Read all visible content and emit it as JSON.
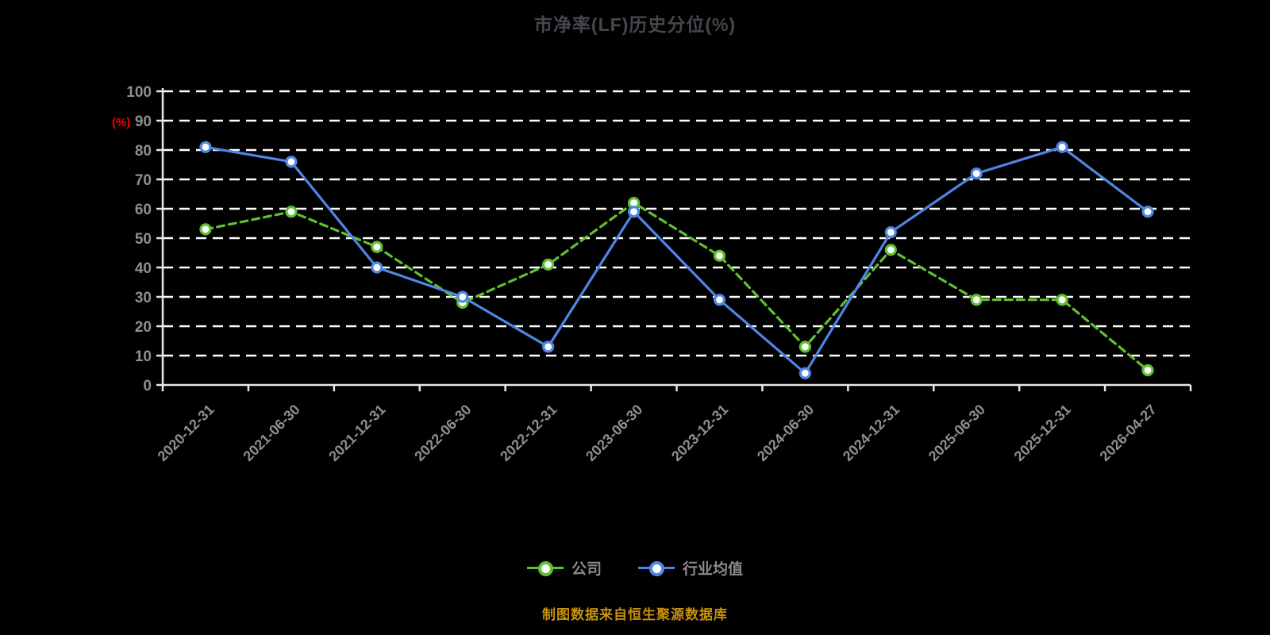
{
  "title": "市净率(LF)历史分位(%)",
  "y_axis_label": "(%)",
  "footer": "制图数据来自恒生聚源数据库",
  "legend": [
    {
      "label": "公司",
      "color": "#5fc131"
    },
    {
      "label": "行业均值",
      "color": "#4f86e3"
    }
  ],
  "colors": {
    "background": "#000000",
    "title": "#46464e",
    "axis": "#e8e8e8",
    "grid": "#ffffff",
    "tick_label": "#8f8f8f",
    "unit_label": "#ff0000",
    "footer": "#c8910d",
    "series_company": "#5fc131",
    "series_industry": "#4f86e3"
  },
  "chart_data": {
    "type": "line",
    "title": "市净率(LF)历史分位(%)",
    "xlabel": "",
    "ylabel": "(%)",
    "ylim": [
      0,
      100
    ],
    "ytick_step": 10,
    "grid": true,
    "legend_position": "bottom",
    "categories": [
      "2020-12-31",
      "2021-06-30",
      "2021-12-31",
      "2022-06-30",
      "2022-12-31",
      "2023-06-30",
      "2023-12-31",
      "2024-06-30",
      "2024-12-31",
      "2025-06-30",
      "2025-12-31",
      "2026-04-27"
    ],
    "series": [
      {
        "name": "公司",
        "color": "#5fc131",
        "dashed": true,
        "values": [
          53,
          59,
          47,
          28,
          41,
          62,
          44,
          13,
          46,
          29,
          29,
          5
        ]
      },
      {
        "name": "行业均值",
        "color": "#4f86e3",
        "dashed": false,
        "values": [
          81,
          76,
          40,
          30,
          13,
          59,
          29,
          4,
          52,
          72,
          81,
          59
        ]
      }
    ]
  }
}
